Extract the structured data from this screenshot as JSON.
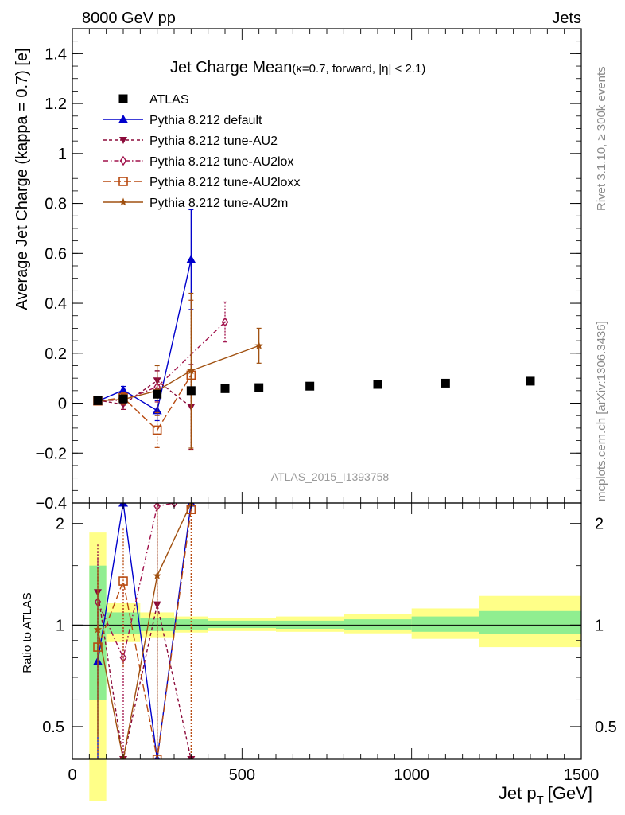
{
  "header": {
    "left": "8000 GeV pp",
    "right": "Jets"
  },
  "title": {
    "main": "Jet Charge Mean",
    "sub": "(κ=0.7, forward, |η| < 2.1)"
  },
  "side_labels": {
    "rivet": "Rivet 3.1.10, ≥ 300k events",
    "mcplots": "mcplots.cern.ch [arXiv:1306.3436]"
  },
  "analysis_id": "ATLAS_2015_I1393758",
  "colors": {
    "atlas": "#000000",
    "default": "#0000cc",
    "au2": "#8b0a3a",
    "au2lox": "#a0104a",
    "au2loxx": "#b84a10",
    "au2m": "#a05010",
    "band_inner": "#90ee90",
    "band_outer": "#ffff88"
  },
  "chart_data": [
    {
      "type": "line",
      "panel": "main",
      "ylabel": "Average Jet Charge (kappa = 0.7) [e]",
      "xlim": [
        0,
        1500
      ],
      "ylim": [
        -0.4,
        1.5
      ],
      "yticks": [
        -0.4,
        -0.2,
        0,
        0.2,
        0.4,
        0.6,
        0.8,
        1,
        1.2,
        1.4
      ],
      "ytick_labels": [
        "−0.4",
        "−0.2",
        "0",
        "0.2",
        "0.4",
        "0.6",
        "0.8",
        "1",
        "1.2",
        "1.4"
      ],
      "legend_position": "top-left",
      "series": [
        {
          "name": "ATLAS",
          "key": "atlas",
          "marker": "square",
          "line": "none",
          "x": [
            75,
            150,
            250,
            350,
            450,
            550,
            700,
            900,
            1100,
            1350
          ],
          "y": [
            0.01,
            0.017,
            0.036,
            0.05,
            0.058,
            0.062,
            0.068,
            0.075,
            0.08,
            0.088
          ],
          "err": [
            0.002,
            0.002,
            0.003,
            0.003,
            0.003,
            0.003,
            0.003,
            0.004,
            0.004,
            0.005
          ]
        },
        {
          "name": "Pythia 8.212 default",
          "key": "default",
          "marker": "triangle-up",
          "line": "solid",
          "x": [
            75,
            150,
            250,
            350
          ],
          "y": [
            0.008,
            0.052,
            -0.03,
            0.575
          ],
          "err": [
            0.005,
            0.015,
            0.04,
            0.2
          ]
        },
        {
          "name": "Pythia 8.212 tune-AU2",
          "key": "au2",
          "marker": "triangle-down",
          "line": "dashed",
          "x": [
            75,
            150,
            250,
            350
          ],
          "y": [
            0.012,
            -0.005,
            0.09,
            -0.015
          ],
          "err": [
            0.005,
            0.02,
            0.04,
            0.17
          ]
        },
        {
          "name": "Pythia 8.212 tune-AU2lox",
          "key": "au2lox",
          "marker": "diamond",
          "line": "dashdot",
          "x": [
            75,
            150,
            250,
            450
          ],
          "y": [
            0.011,
            0.012,
            0.065,
            0.325
          ],
          "err": [
            0.005,
            0.02,
            0.06,
            0.08
          ]
        },
        {
          "name": "Pythia 8.212 tune-AU2loxx",
          "key": "au2loxx",
          "marker": "open-square",
          "line": "longdash",
          "x": [
            75,
            150,
            250,
            350
          ],
          "y": [
            0.009,
            0.022,
            -0.108,
            0.112
          ],
          "err": [
            0.005,
            0.02,
            0.07,
            0.3
          ]
        },
        {
          "name": "Pythia 8.212 tune-AU2m",
          "key": "au2m",
          "marker": "star",
          "line": "solid",
          "x": [
            75,
            150,
            250,
            350,
            550
          ],
          "y": [
            0.01,
            0.015,
            0.05,
            0.13,
            0.23
          ],
          "err": [
            0.005,
            0.02,
            0.1,
            0.31,
            0.07
          ]
        }
      ]
    },
    {
      "type": "line",
      "panel": "ratio",
      "ylabel": "Ratio to ATLAS",
      "xlabel_main": "Jet p",
      "xlabel_sub": "T",
      "xlabel_unit": "[GeV]",
      "xlim": [
        0,
        1500
      ],
      "ylim": [
        0.4,
        2.3
      ],
      "xticks": [
        0,
        500,
        1000,
        1500
      ],
      "xtick_labels": [
        "0",
        "500",
        "1000",
        "1500"
      ],
      "yticks": [
        0.5,
        1,
        2
      ],
      "ytick_labels": [
        "0.5",
        "1",
        "2"
      ],
      "bands": [
        {
          "x0": 50,
          "x1": 100,
          "inner": [
            0.6,
            1.5
          ],
          "outer": [
            0.3,
            1.88
          ]
        },
        {
          "x0": 100,
          "x1": 200,
          "inner": [
            0.94,
            1.09
          ],
          "outer": [
            0.89,
            1.16
          ]
        },
        {
          "x0": 200,
          "x1": 300,
          "inner": [
            0.96,
            1.05
          ],
          "outer": [
            0.92,
            1.09
          ]
        },
        {
          "x0": 300,
          "x1": 400,
          "inner": [
            0.97,
            1.04
          ],
          "outer": [
            0.95,
            1.06
          ]
        },
        {
          "x0": 400,
          "x1": 600,
          "inner": [
            0.98,
            1.03
          ],
          "outer": [
            0.96,
            1.05
          ]
        },
        {
          "x0": 600,
          "x1": 800,
          "inner": [
            0.975,
            1.03
          ],
          "outer": [
            0.955,
            1.06
          ]
        },
        {
          "x0": 800,
          "x1": 1000,
          "inner": [
            0.97,
            1.04
          ],
          "outer": [
            0.945,
            1.08
          ]
        },
        {
          "x0": 1000,
          "x1": 1200,
          "inner": [
            0.955,
            1.06
          ],
          "outer": [
            0.91,
            1.12
          ]
        },
        {
          "x0": 1200,
          "x1": 1500,
          "inner": [
            0.94,
            1.1
          ],
          "outer": [
            0.86,
            1.22
          ]
        }
      ],
      "series": [
        {
          "name": "Pythia 8.212 default",
          "key": "default",
          "marker": "triangle-up",
          "line": "solid",
          "x": [
            75,
            150,
            250,
            350
          ],
          "y": [
            0.78,
            2.3,
            0.4,
            2.3
          ],
          "err": [
            0.5,
            0,
            0,
            0
          ]
        },
        {
          "name": "Pythia 8.212 tune-AU2",
          "key": "au2",
          "marker": "triangle-down",
          "line": "dashed",
          "x": [
            75,
            150,
            250,
            350
          ],
          "y": [
            1.25,
            0.4,
            1.15,
            0.4
          ],
          "err": [
            0.5,
            0,
            1.0,
            0
          ]
        },
        {
          "name": "Pythia 8.212 tune-AU2lox",
          "key": "au2lox",
          "marker": "diamond",
          "line": "dashdot",
          "x": [
            75,
            150,
            250,
            300
          ],
          "y": [
            1.17,
            0.8,
            2.25,
            2.3
          ],
          "err": [
            0.5,
            0.5,
            1.5,
            0
          ]
        },
        {
          "name": "Pythia 8.212 tune-AU2loxx",
          "key": "au2loxx",
          "marker": "open-square",
          "line": "longdash",
          "x": [
            75,
            150,
            250,
            350
          ],
          "y": [
            0.86,
            1.35,
            0.4,
            2.2
          ],
          "err": [
            0.5,
            0.6,
            0,
            2.0
          ]
        },
        {
          "name": "Pythia 8.212 tune-AU2m",
          "key": "au2m",
          "marker": "star",
          "line": "solid",
          "x": [
            75,
            150,
            250,
            350
          ],
          "y": [
            0.97,
            0.4,
            1.4,
            2.3
          ],
          "err": [
            0.5,
            0,
            1.0,
            0
          ]
        }
      ]
    }
  ]
}
